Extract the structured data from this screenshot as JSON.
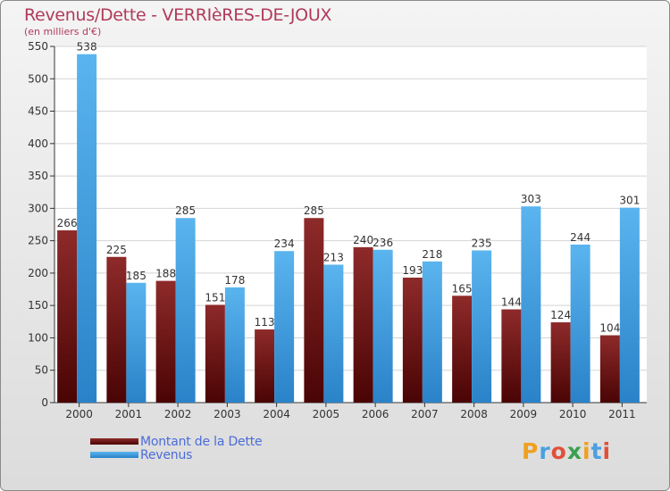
{
  "chart_data": {
    "type": "bar",
    "title": "Revenus/Dette - VERRIèRES-DE-JOUX",
    "subtitle": "(en milliers d'€)",
    "categories": [
      "2000",
      "2001",
      "2002",
      "2003",
      "2004",
      "2005",
      "2006",
      "2007",
      "2008",
      "2009",
      "2010",
      "2011"
    ],
    "series": [
      {
        "name": "Montant de la Dette",
        "values": [
          266,
          225,
          188,
          151,
          113,
          285,
          240,
          193,
          165,
          144,
          124,
          104
        ],
        "color": "#7a1c1c"
      },
      {
        "name": "Revenus",
        "values": [
          538,
          185,
          285,
          178,
          234,
          213,
          236,
          218,
          235,
          303,
          244,
          301
        ],
        "color": "#3a9ce0"
      }
    ],
    "ylim": [
      0,
      550
    ],
    "yticks": [
      0,
      50,
      100,
      150,
      200,
      250,
      300,
      350,
      400,
      450,
      500,
      550
    ],
    "grid": true,
    "legend": "bottom-left"
  },
  "logo": {
    "text": "Proxiti",
    "letters": [
      "P",
      "r",
      "o",
      "x",
      "i",
      "t",
      "i"
    ],
    "colors": [
      "#f0a020",
      "#4aa0e0",
      "#e0503a",
      "#3aa050",
      "#f0a020",
      "#4aa0e0",
      "#e0503a"
    ]
  }
}
